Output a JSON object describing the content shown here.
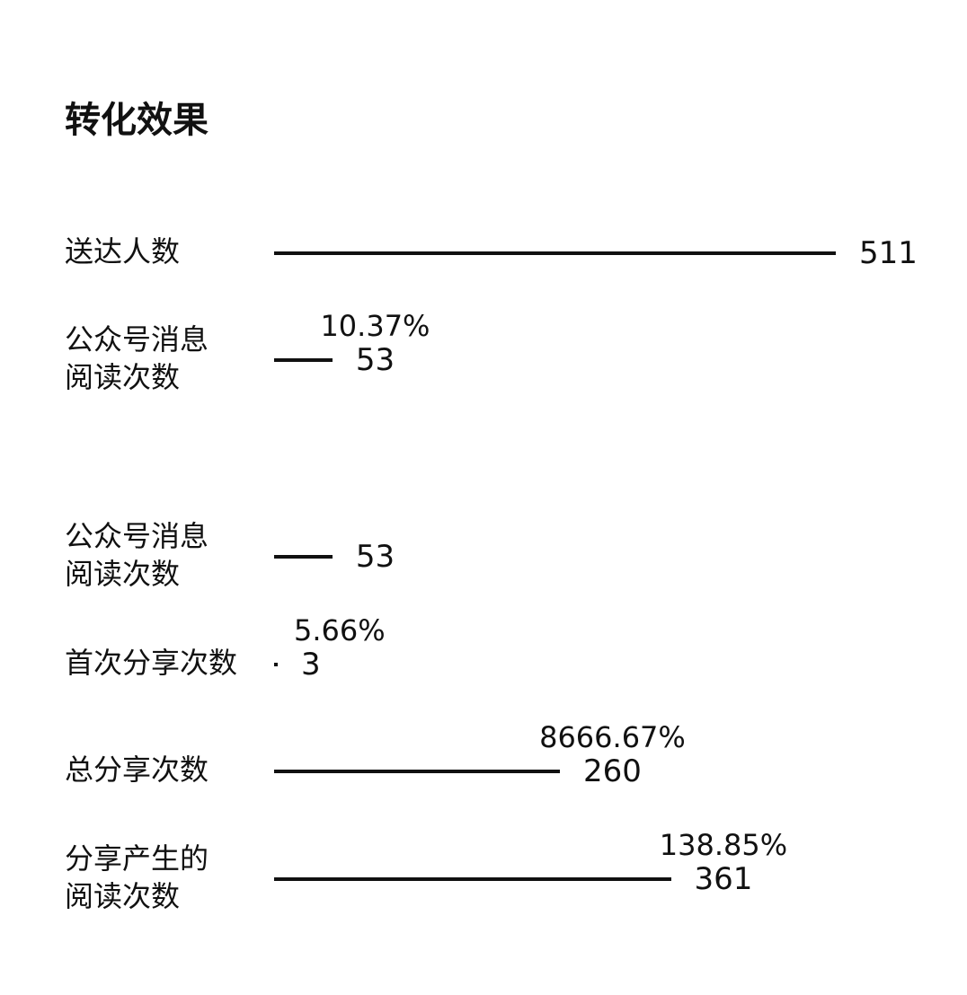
{
  "chart_data": [
    {
      "type": "bar",
      "orientation": "horizontal",
      "title": "转化效果",
      "rows": [
        {
          "label_lines": [
            "送达人数"
          ],
          "value": 511,
          "value_text": "511",
          "pct_text": ""
        },
        {
          "label_lines": [
            "公众号消息",
            "阅读次数"
          ],
          "value": 53,
          "value_text": "53",
          "pct_text": "10.37%"
        }
      ]
    },
    {
      "type": "bar",
      "orientation": "horizontal",
      "title": "",
      "rows": [
        {
          "label_lines": [
            "公众号消息",
            "阅读次数"
          ],
          "value": 53,
          "value_text": "53",
          "pct_text": ""
        },
        {
          "label_lines": [
            "首次分享次数"
          ],
          "value": 3,
          "value_text": "3",
          "pct_text": "5.66%"
        },
        {
          "label_lines": [
            "总分享次数"
          ],
          "value": 260,
          "value_text": "260",
          "pct_text": "8666.67%"
        },
        {
          "label_lines": [
            "分享产生的",
            "阅读次数"
          ],
          "value": 361,
          "value_text": "361",
          "pct_text": "138.85%"
        }
      ]
    }
  ]
}
